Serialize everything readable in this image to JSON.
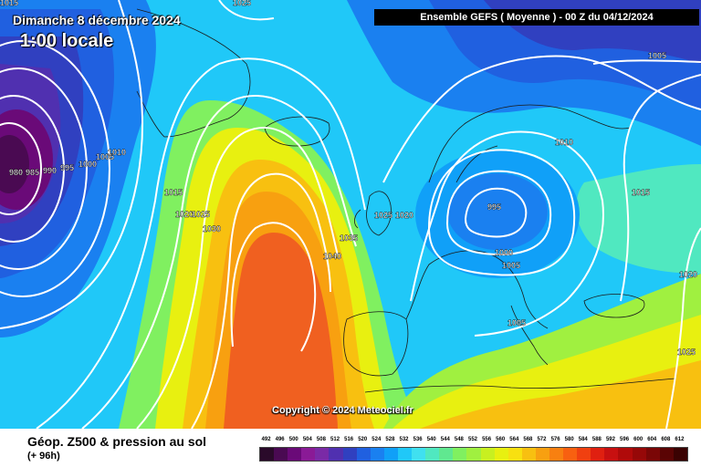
{
  "header": {
    "date_label": "Dimanche 8 décembre 2024",
    "time_label": "1:00 locale",
    "run_label": "Ensemble GEFS  ( Moyenne )  -  00 Z du 04/12/2024"
  },
  "copyright": "Copyright © 2024 Meteociel.fr",
  "footer": {
    "title": "Géop. Z500 & pression au sol",
    "subtitle": "(+ 96h)"
  },
  "legend": {
    "values": [
      "492",
      "496",
      "500",
      "504",
      "508",
      "512",
      "516",
      "520",
      "524",
      "528",
      "532",
      "536",
      "540",
      "544",
      "548",
      "552",
      "556",
      "560",
      "564",
      "568",
      "572",
      "576",
      "580",
      "584",
      "588",
      "592",
      "596",
      "600",
      "604",
      "608",
      "612"
    ],
    "colors": [
      "#2a0a2a",
      "#4a0a52",
      "#6a0a78",
      "#8a1a96",
      "#7a2aa6",
      "#5030b0",
      "#3040c0",
      "#2060e0",
      "#1a80f0",
      "#10a0f8",
      "#20c8f8",
      "#40e0f0",
      "#50e8c0",
      "#60e890",
      "#80f060",
      "#a0f040",
      "#c8f020",
      "#e8f010",
      "#f8e010",
      "#f8c010",
      "#f8a010",
      "#f88010",
      "#f86010",
      "#f04010",
      "#e02010",
      "#c81010",
      "#b00a0a",
      "#960808",
      "#7a0606",
      "#5a0404",
      "#3a0202"
    ]
  },
  "isobar_labels": [
    {
      "text": "1015",
      "pos": "top-left"
    },
    {
      "text": "1025",
      "pos": "top-center"
    },
    {
      "text": "980",
      "pos": "west-low"
    },
    {
      "text": "985",
      "pos": "west-low"
    },
    {
      "text": "990",
      "pos": "west-low"
    },
    {
      "text": "995",
      "pos": "west-low"
    },
    {
      "text": "1000",
      "pos": "west"
    },
    {
      "text": "1005",
      "pos": "west"
    },
    {
      "text": "1010",
      "pos": "west"
    },
    {
      "text": "1015",
      "pos": "atlantic"
    },
    {
      "text": "1020",
      "pos": "atlantic"
    },
    {
      "text": "1025",
      "pos": "atlantic"
    },
    {
      "text": "1030",
      "pos": "atlantic"
    },
    {
      "text": "1040",
      "pos": "atlantic-high"
    },
    {
      "text": "1035",
      "pos": "biscay"
    },
    {
      "text": "1025",
      "pos": "channel"
    },
    {
      "text": "1020",
      "pos": "channel"
    },
    {
      "text": "995",
      "pos": "baltic-low"
    },
    {
      "text": "1000",
      "pos": "baltic"
    },
    {
      "text": "1005",
      "pos": "central-europe"
    },
    {
      "text": "1005",
      "pos": "balkans"
    },
    {
      "text": "1010",
      "pos": "scandinavia"
    },
    {
      "text": "1015",
      "pos": "russia"
    },
    {
      "text": "1020",
      "pos": "east-edge"
    },
    {
      "text": "1025",
      "pos": "east-edge"
    },
    {
      "text": "1005",
      "pos": "northeast"
    }
  ]
}
